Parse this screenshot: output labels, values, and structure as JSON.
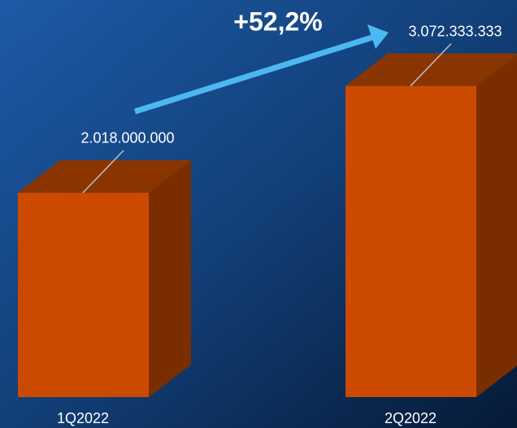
{
  "chart_data": {
    "type": "bar3d",
    "annotation": "+52,2%",
    "categories": [
      "1Q2022",
      "2Q2022"
    ],
    "values": [
      2018000000,
      3072333333
    ],
    "value_labels": [
      "2.018.000.000",
      "3.072.333.333"
    ],
    "color": "#cc4a00",
    "ylim": [
      0,
      3600000000
    ]
  }
}
